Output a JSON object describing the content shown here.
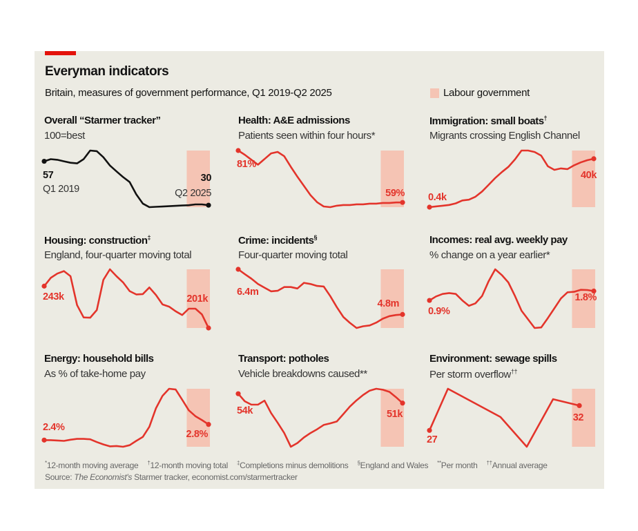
{
  "header": {
    "title": "Everyman indicators",
    "subtitle": "Britain, measures of government performance, Q1 2019-Q2 2025",
    "legend_label": "Labour government"
  },
  "colors": {
    "accent": "#e3120b",
    "line_red": "#e3342b",
    "line_black": "#121212",
    "shade": "#f5c4b4",
    "background": "#ecebe3"
  },
  "footnotes": [
    {
      "sym": "*",
      "text": "12-month moving average"
    },
    {
      "sym": "†",
      "text": "12-month moving total"
    },
    {
      "sym": "‡",
      "text": "Completions minus demolitions"
    },
    {
      "sym": "§",
      "text": "England and Wales"
    },
    {
      "sym": "**",
      "text": "Per month"
    },
    {
      "sym": "††",
      "text": "Annual average"
    }
  ],
  "source": {
    "prefix": "Source: ",
    "italic": "The Economist's",
    "rest": " Starmer tracker, economist.com/starmertracker"
  },
  "chart_data": [
    {
      "type": "line",
      "title": "Overall “Starmer tracker”",
      "title_sup": "",
      "subtitle": "100=best",
      "color": "black",
      "start_label": "57",
      "end_label": "30",
      "start_period": "Q1 2019",
      "end_period": "Q2 2025",
      "x_range": [
        "Q1 2019",
        "Q2 2025"
      ],
      "shaded": "Q3 2024-Q2 2025",
      "values": [
        57,
        58.3,
        57.9,
        57,
        56.1,
        55.7,
        58.3,
        63.6,
        63.2,
        59.5,
        54.4,
        50.8,
        47.3,
        44.2,
        36.7,
        31,
        28.8,
        29,
        29.2,
        29.4,
        29.6,
        29.8,
        30,
        30.5,
        30.5,
        30
      ]
    },
    {
      "type": "line",
      "title": "Health: A&E admissions",
      "title_sup": "",
      "subtitle": "Patients seen within four hours*",
      "color": "red",
      "start_label": "81%",
      "end_label": "59%",
      "x_range": [
        "Q1 2019",
        "Q2 2025"
      ],
      "shaded": "Q3 2024-Q2 2025",
      "values": [
        81,
        79.2,
        77.1,
        75,
        77.4,
        79.8,
        80.4,
        78.6,
        74.1,
        69.9,
        66,
        62.1,
        59.1,
        57.3,
        57,
        57.6,
        57.9,
        57.9,
        58.2,
        58.2,
        58.5,
        58.5,
        58.8,
        58.8,
        59,
        59
      ]
    },
    {
      "type": "line",
      "title": "Immigration: small boats",
      "title_sup": "†",
      "subtitle": "Migrants crossing English Channel",
      "color": "red",
      "start_label": "0.4k",
      "end_label": "40k",
      "x_range": [
        "Q1 2019",
        "Q2 2025"
      ],
      "shaded": "Q3 2024-Q2 2025",
      "values": [
        0.4,
        1,
        1.6,
        2.2,
        3.5,
        5.9,
        6.5,
        8.9,
        13.2,
        18.7,
        24.2,
        29,
        33.3,
        39.4,
        46.7,
        46.7,
        45.5,
        42.5,
        33.9,
        30.9,
        32.1,
        31.5,
        34.6,
        37,
        38.8,
        40
      ]
    },
    {
      "type": "line",
      "title": "Housing: construction",
      "title_sup": "‡",
      "subtitle": "England, four-quarter moving total",
      "color": "red",
      "start_label": "243k",
      "end_label": "201k",
      "x_range": [
        "Q1 2019",
        "Q2 2025"
      ],
      "shaded": "Q3 2024-Q2 2025",
      "values": [
        243,
        251.3,
        255.6,
        258.1,
        253,
        224,
        211.6,
        211.3,
        219,
        249.3,
        259.9,
        253,
        246.8,
        238,
        234.7,
        235,
        241.7,
        234.2,
        224.6,
        222.4,
        217.8,
        214,
        220.4,
        220.4,
        214.6,
        201
      ]
    },
    {
      "type": "line",
      "title": "Crime: incidents",
      "title_sup": "§",
      "subtitle": "Four-quarter moving total",
      "color": "red",
      "start_label": "6.4m",
      "end_label": "4.8m",
      "x_range": [
        "Q1 2019",
        "Q2 2025"
      ],
      "shaded": "Q3 2024-Q2 2025",
      "values": [
        6.4,
        6.23,
        6.07,
        5.88,
        5.75,
        5.62,
        5.64,
        5.77,
        5.77,
        5.72,
        5.92,
        5.88,
        5.81,
        5.79,
        5.45,
        5.06,
        4.71,
        4.5,
        4.32,
        4.38,
        4.41,
        4.51,
        4.65,
        4.74,
        4.78,
        4.8
      ]
    },
    {
      "type": "line",
      "title": "Incomes: real avg. weekly pay",
      "title_sup": "",
      "subtitle": "% change on a year earlier*",
      "color": "red",
      "start_label": "0.9%",
      "end_label": "1.8%",
      "x_range": [
        "Q1 2019",
        "Q2 2025"
      ],
      "shaded": "Q3 2024-Q2 2025",
      "values": [
        0.9,
        1.28,
        1.52,
        1.61,
        1.52,
        0.9,
        0.38,
        0.62,
        1.33,
        2.75,
        3.89,
        3.34,
        2.63,
        1.33,
        -0.09,
        -0.92,
        -1.75,
        -1.7,
        -0.8,
        0.14,
        1.09,
        1.68,
        1.73,
        1.92,
        1.9,
        1.8
      ]
    },
    {
      "type": "line",
      "title": "Energy: household bills",
      "title_sup": "",
      "subtitle": "As % of take-home pay",
      "color": "red",
      "start_label": "2.4%",
      "end_label": "2.8%",
      "x_range": [
        "Q1 2019",
        "Q2 2025"
      ],
      "shaded": "Q3 2024-Q2 2025",
      "values": [
        2.4,
        2.4,
        2.39,
        2.38,
        2.41,
        2.43,
        2.43,
        2.42,
        2.35,
        2.29,
        2.24,
        2.25,
        2.23,
        2.27,
        2.38,
        2.48,
        2.74,
        3.21,
        3.53,
        3.71,
        3.69,
        3.43,
        3.16,
        3.01,
        2.91,
        2.8
      ]
    },
    {
      "type": "line",
      "title": "Transport: potholes",
      "title_sup": "",
      "subtitle": "Vehicle breakdowns caused**",
      "color": "red",
      "start_label": "54k",
      "end_label": "51k",
      "x_range": [
        "Q1 2019",
        "Q2 2025"
      ],
      "shaded": "Q3 2024-Q2 2025",
      "values": [
        54,
        51.6,
        50.5,
        50.5,
        51.8,
        47.8,
        44.7,
        41.4,
        37,
        38.2,
        40,
        41.4,
        42.6,
        44,
        44.5,
        45.1,
        47.5,
        49.9,
        51.9,
        53.6,
        55,
        55.6,
        55.3,
        54.6,
        52.9,
        51
      ]
    },
    {
      "type": "line",
      "title": "Environment: sewage spills",
      "title_sup": "††",
      "subtitle": "Per storm overflow",
      "subtitle_sup": "††",
      "color": "red",
      "start_label": "27",
      "end_label": "32",
      "x_range": [
        "Q1 2019",
        "Q2 2025"
      ],
      "shaded": "Q3 2024-Q2 2025",
      "points": [
        [
          2019.0,
          27
        ],
        [
          2019.7,
          35.4
        ],
        [
          2021.7,
          29.7
        ],
        [
          2022.7,
          23.7
        ],
        [
          2023.7,
          33.3
        ],
        [
          2024.7,
          32
        ]
      ]
    }
  ]
}
